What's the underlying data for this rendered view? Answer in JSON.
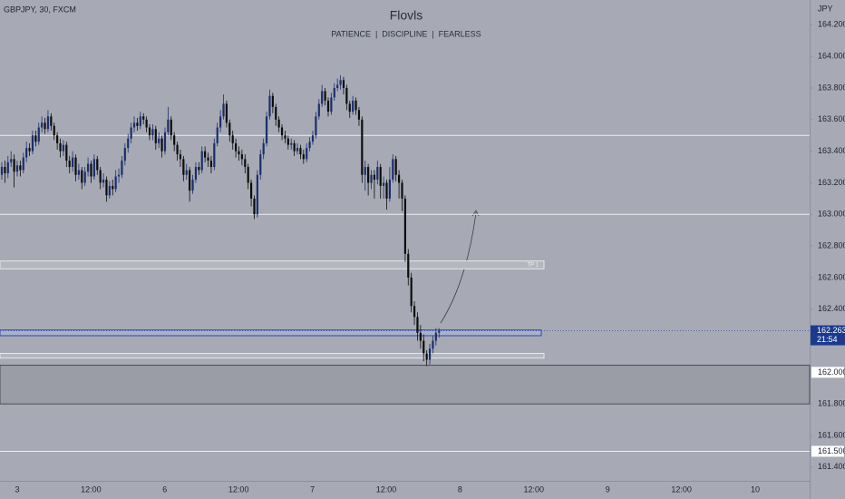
{
  "chart_data": {
    "type": "candlestick",
    "symbol": "GBPJPY, 30, FXCM",
    "title": "Flovls",
    "subtitle": "PATIENCE  |  DISCIPLINE  |  FEARLESS",
    "currency": "JPY",
    "up_color": "#1b2f6e",
    "down_color": "#0d0d0d",
    "open": [
      163.25,
      163.3,
      163.26,
      163.33,
      163.35,
      163.27,
      163.31,
      163.28,
      163.36,
      163.42,
      163.4,
      163.5,
      163.46,
      163.55,
      163.58,
      163.54,
      163.62,
      163.56,
      163.5,
      163.45,
      163.4,
      163.44,
      163.34,
      163.3,
      163.36,
      163.25,
      163.28,
      163.2,
      163.27,
      163.32,
      163.24,
      163.35,
      163.28,
      163.2,
      163.22,
      163.12,
      163.18,
      163.16,
      163.24,
      163.25,
      163.34,
      163.42,
      163.48,
      163.55,
      163.58,
      163.56,
      163.62,
      163.6,
      163.55,
      163.5,
      163.54,
      163.45,
      163.48,
      163.4,
      163.52,
      163.6,
      163.5,
      163.44,
      163.38,
      163.35,
      163.25,
      163.28,
      163.15,
      163.22,
      163.3,
      163.28,
      163.4,
      163.36,
      163.34,
      163.3,
      163.45,
      163.55,
      163.62,
      163.7,
      163.58,
      163.5,
      163.45,
      163.4,
      163.38,
      163.35,
      163.3,
      163.2,
      163.1,
      163.0,
      163.25,
      163.38,
      163.45,
      163.62,
      163.75,
      163.68,
      163.6,
      163.55,
      163.5,
      163.48,
      163.44,
      163.45,
      163.4,
      163.42,
      163.38,
      163.35,
      163.42,
      163.46,
      163.5,
      163.62,
      163.7,
      163.78,
      163.72,
      163.65,
      163.74,
      163.8,
      163.82,
      163.85,
      163.8,
      163.7,
      163.65,
      163.72,
      163.66,
      163.6,
      163.25,
      163.3,
      163.2,
      163.25,
      163.22,
      163.3,
      163.18,
      163.2,
      163.1,
      163.22,
      163.35,
      163.25,
      163.2,
      163.1,
      162.75,
      162.6,
      162.42,
      162.35,
      162.25,
      162.2,
      162.12,
      162.08,
      162.15,
      162.2,
      162.25
    ],
    "high": [
      163.33,
      163.34,
      163.37,
      163.4,
      163.38,
      163.34,
      163.34,
      163.39,
      163.46,
      163.45,
      163.53,
      163.53,
      163.58,
      163.62,
      163.61,
      163.66,
      163.64,
      163.58,
      163.52,
      163.48,
      163.47,
      163.46,
      163.37,
      163.4,
      163.38,
      163.32,
      163.3,
      163.3,
      163.36,
      163.34,
      163.38,
      163.37,
      163.3,
      163.26,
      163.24,
      163.21,
      163.22,
      163.28,
      163.29,
      163.37,
      163.45,
      163.51,
      163.58,
      163.62,
      163.61,
      163.65,
      163.64,
      163.62,
      163.57,
      163.57,
      163.56,
      163.52,
      163.5,
      163.55,
      163.68,
      163.62,
      163.52,
      163.46,
      163.41,
      163.37,
      163.32,
      163.3,
      163.25,
      163.33,
      163.33,
      163.43,
      163.43,
      163.39,
      163.37,
      163.48,
      163.58,
      163.66,
      163.76,
      163.72,
      163.6,
      163.53,
      163.48,
      163.43,
      163.41,
      163.38,
      163.32,
      163.22,
      163.12,
      163.28,
      163.41,
      163.48,
      163.65,
      163.79,
      163.77,
      163.7,
      163.62,
      163.57,
      163.53,
      163.5,
      163.48,
      163.47,
      163.45,
      163.44,
      163.41,
      163.45,
      163.49,
      163.53,
      163.65,
      163.73,
      163.82,
      163.8,
      163.74,
      163.77,
      163.83,
      163.86,
      163.88,
      163.87,
      163.82,
      163.72,
      163.75,
      163.74,
      163.68,
      163.62,
      163.34,
      163.32,
      163.28,
      163.28,
      163.34,
      163.32,
      163.24,
      163.22,
      163.3,
      163.38,
      163.37,
      163.28,
      163.22,
      163.12,
      162.78,
      162.63,
      162.45,
      162.38,
      162.3,
      162.24,
      162.14,
      162.18,
      162.23,
      162.28,
      162.28
    ],
    "low": [
      163.22,
      163.2,
      163.23,
      163.3,
      163.17,
      163.24,
      163.24,
      163.26,
      163.33,
      163.37,
      163.38,
      163.43,
      163.44,
      163.52,
      163.51,
      163.52,
      163.53,
      163.47,
      163.41,
      163.36,
      163.37,
      163.3,
      163.26,
      163.27,
      163.21,
      163.22,
      163.16,
      163.18,
      163.24,
      163.2,
      163.22,
      163.25,
      163.16,
      163.17,
      163.08,
      163.1,
      163.12,
      163.14,
      163.2,
      163.23,
      163.31,
      163.39,
      163.45,
      163.52,
      163.53,
      163.54,
      163.57,
      163.52,
      163.47,
      163.47,
      163.41,
      163.42,
      163.36,
      163.38,
      163.5,
      163.47,
      163.4,
      163.34,
      163.3,
      163.21,
      163.22,
      163.08,
      163.13,
      163.2,
      163.25,
      163.26,
      163.33,
      163.3,
      163.26,
      163.28,
      163.43,
      163.52,
      163.6,
      163.55,
      163.46,
      163.41,
      163.36,
      163.34,
      163.31,
      163.26,
      163.16,
      163.05,
      162.97,
      162.98,
      163.22,
      163.35,
      163.43,
      163.6,
      163.64,
      163.56,
      163.52,
      163.47,
      163.45,
      163.41,
      163.41,
      163.37,
      163.38,
      163.35,
      163.32,
      163.33,
      163.4,
      163.44,
      163.48,
      163.6,
      163.68,
      163.69,
      163.62,
      163.63,
      163.72,
      163.78,
      163.79,
      163.76,
      163.66,
      163.61,
      163.63,
      163.63,
      163.56,
      163.2,
      163.15,
      163.12,
      163.16,
      163.1,
      163.19,
      163.1,
      163.1,
      163.03,
      163.08,
      163.2,
      163.21,
      163.1,
      163.02,
      162.7,
      162.55,
      162.38,
      162.3,
      162.2,
      162.15,
      162.07,
      162.04,
      162.05,
      162.12,
      162.17,
      162.22
    ],
    "close": [
      163.3,
      163.26,
      163.33,
      163.35,
      163.27,
      163.31,
      163.28,
      163.36,
      163.42,
      163.4,
      163.5,
      163.46,
      163.55,
      163.58,
      163.54,
      163.62,
      163.56,
      163.5,
      163.45,
      163.4,
      163.44,
      163.34,
      163.3,
      163.36,
      163.25,
      163.28,
      163.2,
      163.27,
      163.32,
      163.24,
      163.35,
      163.28,
      163.2,
      163.22,
      163.12,
      163.18,
      163.16,
      163.24,
      163.25,
      163.34,
      163.42,
      163.48,
      163.55,
      163.58,
      163.56,
      163.62,
      163.6,
      163.55,
      163.5,
      163.54,
      163.45,
      163.48,
      163.4,
      163.52,
      163.6,
      163.5,
      163.44,
      163.38,
      163.35,
      163.25,
      163.28,
      163.15,
      163.22,
      163.3,
      163.28,
      163.4,
      163.36,
      163.34,
      163.3,
      163.45,
      163.55,
      163.62,
      163.7,
      163.58,
      163.5,
      163.45,
      163.4,
      163.38,
      163.35,
      163.3,
      163.2,
      163.1,
      163.0,
      163.25,
      163.38,
      163.45,
      163.62,
      163.75,
      163.68,
      163.6,
      163.55,
      163.5,
      163.48,
      163.44,
      163.45,
      163.4,
      163.42,
      163.38,
      163.35,
      163.42,
      163.46,
      163.5,
      163.62,
      163.7,
      163.78,
      163.72,
      163.65,
      163.74,
      163.8,
      163.82,
      163.85,
      163.8,
      163.7,
      163.65,
      163.72,
      163.66,
      163.6,
      163.25,
      163.3,
      163.2,
      163.25,
      163.22,
      163.3,
      163.18,
      163.2,
      163.1,
      163.22,
      163.35,
      163.25,
      163.2,
      163.1,
      162.75,
      162.6,
      162.42,
      162.35,
      162.25,
      162.2,
      162.12,
      162.08,
      162.15,
      162.2,
      162.25,
      162.263
    ],
    "ylim": [
      161.313,
      164.357
    ],
    "yticks": [
      {
        "value": 164.2,
        "label": "164.200"
      },
      {
        "value": 164.0,
        "label": "164.000"
      },
      {
        "value": 163.8,
        "label": "163.800"
      },
      {
        "value": 163.6,
        "label": "163.600"
      },
      {
        "value": 163.4,
        "label": "163.400"
      },
      {
        "value": 163.2,
        "label": "163.200"
      },
      {
        "value": 163.0,
        "label": "163.000"
      },
      {
        "value": 162.8,
        "label": "162.800"
      },
      {
        "value": 162.6,
        "label": "162.600"
      },
      {
        "value": 162.4,
        "label": "162.400"
      },
      {
        "value": 161.8,
        "label": "161.800"
      },
      {
        "value": 161.6,
        "label": "161.600"
      },
      {
        "value": 161.4,
        "label": "161.400"
      }
    ],
    "xticks": [
      "3",
      "12:00",
      "6",
      "12:00",
      "7",
      "12:00",
      "8",
      "12:00",
      "9",
      "12:00",
      "10"
    ],
    "current_price": {
      "value": 162.263,
      "label": "162.263",
      "countdown": "21:54"
    },
    "price_labels": [
      {
        "value": 162.0,
        "label": "162.000"
      },
      {
        "value": 161.5,
        "label": "161.500"
      }
    ],
    "lines": [
      163.5,
      163.0,
      161.5
    ],
    "zones": [
      {
        "from": 162.705,
        "to": 162.655,
        "label": "TP 1",
        "kind": "tp"
      },
      {
        "from": 162.268,
        "to": 162.232,
        "kind": "entry"
      },
      {
        "from": 162.12,
        "to": 162.09,
        "kind": "stop"
      },
      {
        "from": 162.045,
        "to": 161.8,
        "kind": "demand"
      }
    ]
  }
}
